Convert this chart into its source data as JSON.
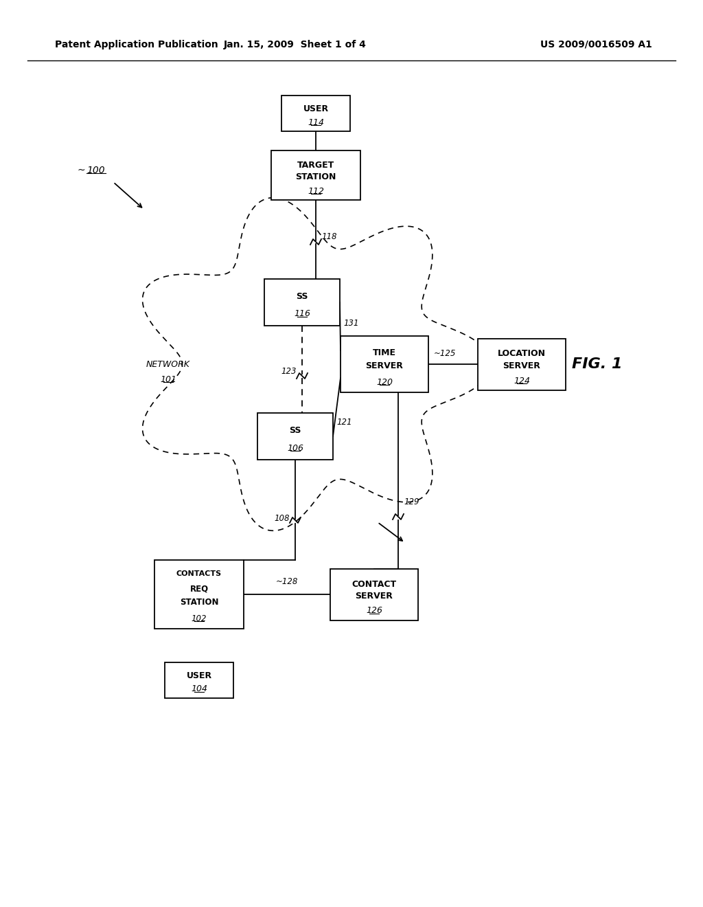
{
  "header_left": "Patent Application Publication",
  "header_mid": "Jan. 15, 2009  Sheet 1 of 4",
  "header_right": "US 2009/0016509 A1",
  "fig_label": "FIG. 1",
  "system_label": "100",
  "background": "#ffffff"
}
